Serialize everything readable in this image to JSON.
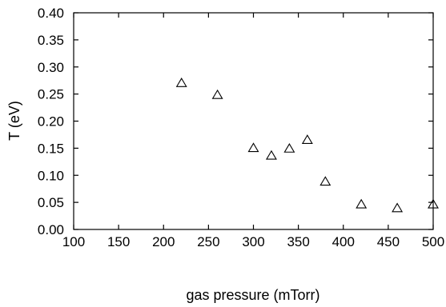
{
  "chart_data": {
    "type": "scatter",
    "title": "",
    "xlabel": "gas pressure (mTorr)",
    "ylabel": "T (eV)",
    "xlim": [
      100,
      500
    ],
    "ylim": [
      0.0,
      0.4
    ],
    "x_ticks": [
      "100",
      "150",
      "200",
      "250",
      "300",
      "350",
      "400",
      "450",
      "500"
    ],
    "y_ticks": [
      "0.00",
      "0.05",
      "0.10",
      "0.15",
      "0.20",
      "0.25",
      "0.30",
      "0.35",
      "0.40"
    ],
    "grid": false,
    "marker": "open-triangle",
    "series": [
      {
        "points": [
          {
            "x": 220,
            "y": 0.27
          },
          {
            "x": 260,
            "y": 0.248
          },
          {
            "x": 300,
            "y": 0.15
          },
          {
            "x": 320,
            "y": 0.136
          },
          {
            "x": 340,
            "y": 0.149
          },
          {
            "x": 360,
            "y": 0.165
          },
          {
            "x": 380,
            "y": 0.088
          },
          {
            "x": 420,
            "y": 0.046
          },
          {
            "x": 460,
            "y": 0.039
          },
          {
            "x": 500,
            "y": 0.046
          }
        ]
      }
    ]
  }
}
